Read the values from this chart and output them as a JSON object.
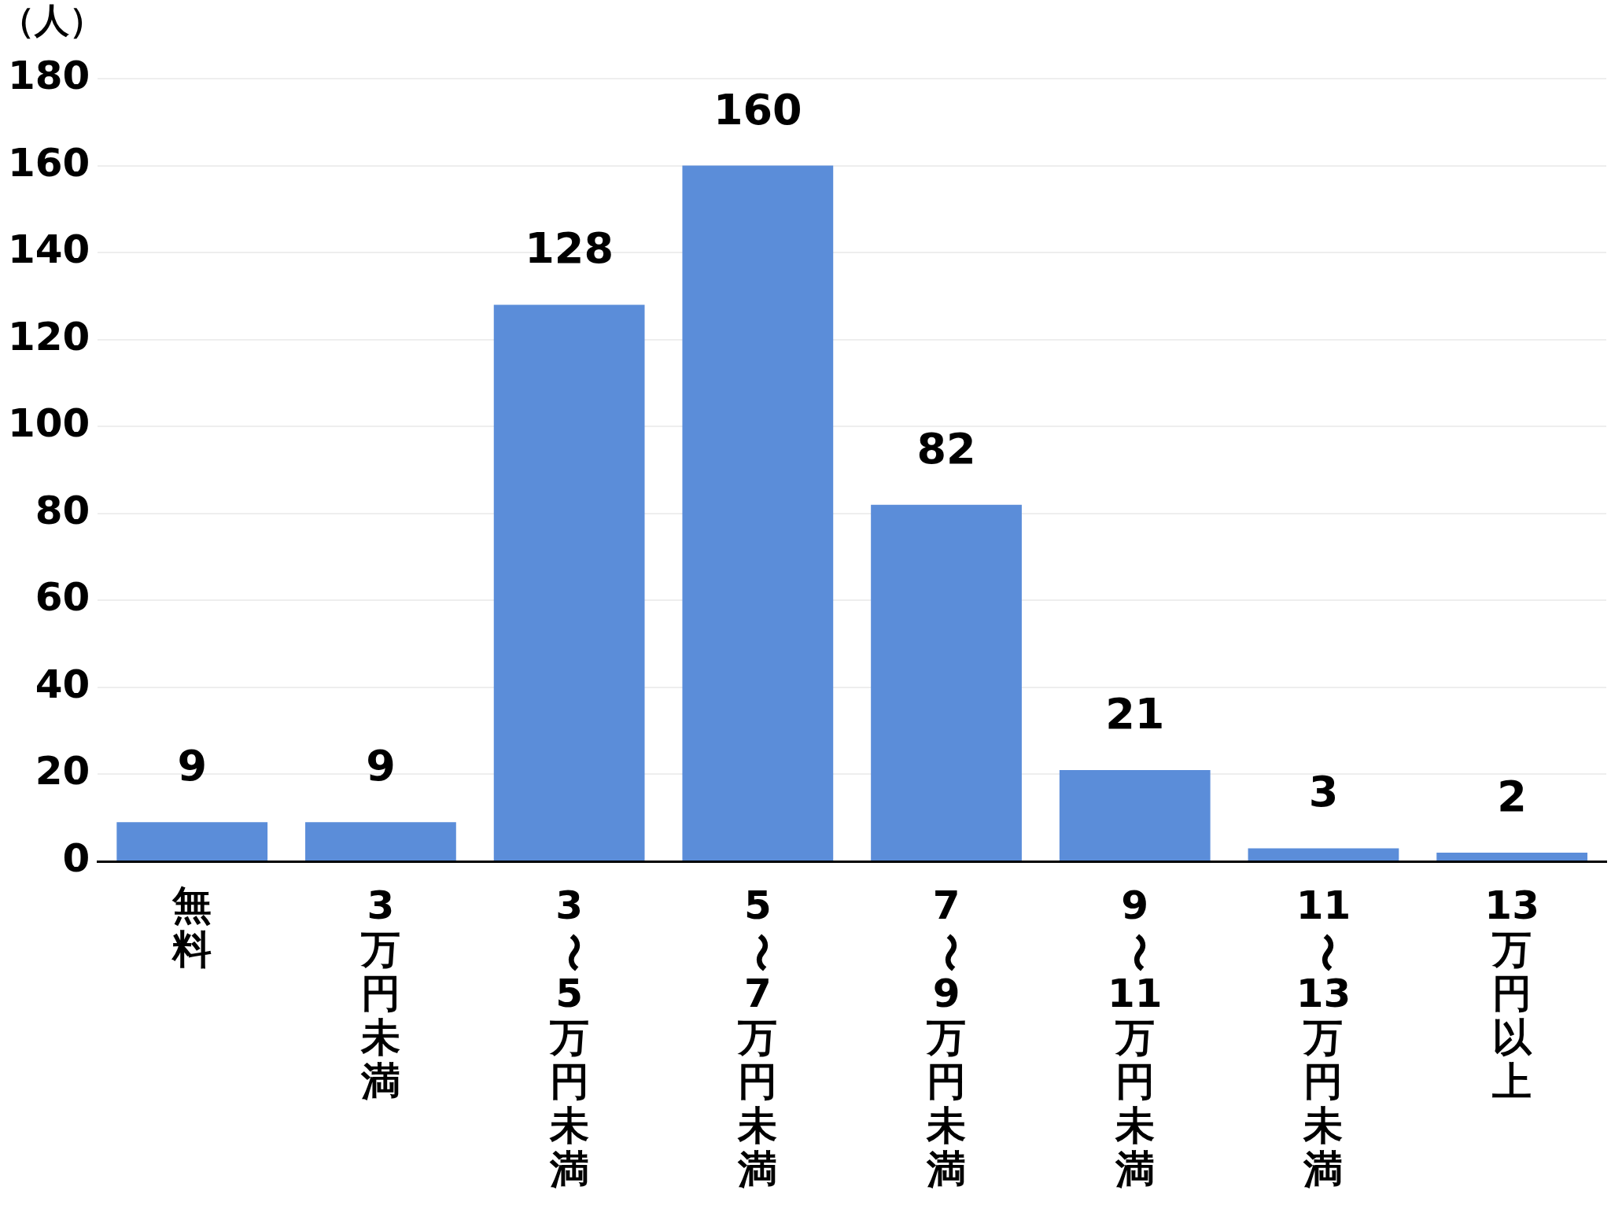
{
  "chart_data": {
    "type": "bar",
    "ylabel": "（人）",
    "categories": [
      "無料",
      "3万円未満",
      "3〜5万円未満",
      "5〜7万円未満",
      "7〜9万円未満",
      "9〜11万円未満",
      "11〜13万円未満",
      "13万円以上"
    ],
    "values": [
      9,
      9,
      128,
      160,
      82,
      21,
      3,
      2
    ],
    "color": "#5b8dd9",
    "ylim": [
      0,
      180
    ],
    "yticks": [
      0,
      20,
      40,
      60,
      80,
      100,
      120,
      140,
      160,
      180
    ],
    "grid": "y",
    "data_labels": true
  }
}
